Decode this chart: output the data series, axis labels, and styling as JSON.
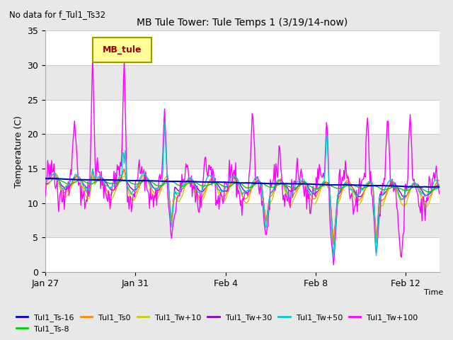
{
  "title": "MB Tule Tower: Tule Temps 1 (3/19/14-now)",
  "subtitle": "No data for f_Tul1_Ts32",
  "ylabel": "Temperature (C)",
  "xlabel": "Time",
  "ylim": [
    0,
    35
  ],
  "yticks": [
    0,
    5,
    10,
    15,
    20,
    25,
    30,
    35
  ],
  "xtick_labels": [
    "Jan 27",
    "Jan 31",
    "Feb 4",
    "Feb 8",
    "Feb 12"
  ],
  "xtick_positions": [
    0,
    4,
    8,
    12,
    16
  ],
  "xlim": [
    0,
    17.5
  ],
  "outer_bg": "#e8e8e8",
  "plot_bg": "#f0f0f0",
  "band_colors": [
    "#ffffff",
    "#e8e8e8"
  ],
  "grid_color": "#cccccc",
  "series_colors": {
    "Tul1_Ts-16": "#0000cc",
    "Tul1_Ts-8": "#00cc00",
    "Tul1_Ts0": "#ff8800",
    "Tul1_Tw+10": "#cccc00",
    "Tul1_Tw+30": "#8800cc",
    "Tul1_Tw+50": "#00cccc",
    "Tul1_Tw+100": "#ff00ff"
  },
  "legend_box": {
    "label": "MB_tule",
    "facecolor": "#ffff99",
    "edgecolor": "#999900",
    "textcolor": "#990000"
  },
  "figsize": [
    6.4,
    4.8
  ],
  "dpi": 100
}
